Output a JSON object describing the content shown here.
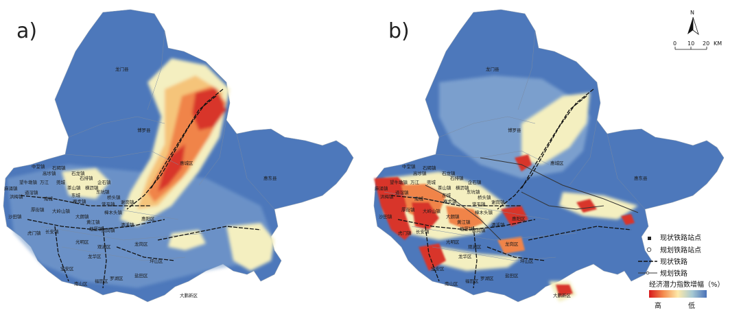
{
  "panels": [
    {
      "label": "a)"
    },
    {
      "label": "b)"
    }
  ],
  "region_labels": [
    "龙门县",
    "博罗县",
    "惠城区",
    "惠东县",
    "中堂镇",
    "石碣镇",
    "望牛墩镇",
    "高埗镇",
    "石龙镇",
    "麻涌镇",
    "万江",
    "莞城",
    "石排镇",
    "企石镇",
    "洪梅镇",
    "茶山镇",
    "横沥镇",
    "道滘镇",
    "南城",
    "东城",
    "东坑镇",
    "桥头镇",
    "厚街镇",
    "寮步镇",
    "常平镇",
    "谢岗镇",
    "沙田镇",
    "大岭山镇",
    "大朗镇",
    "黄江镇",
    "樟木头镇",
    "清溪镇",
    "凤岗镇",
    "塘厦镇",
    "长安镇",
    "虎门镇",
    "光明区",
    "观澜区",
    "龙岗区",
    "龙华区",
    "坪山区",
    "宝安区",
    "南山区",
    "福田区",
    "罗湖区",
    "盐田区",
    "大鹏新区",
    "惠阳区"
  ],
  "compass": {
    "north": "N"
  },
  "scale": {
    "ticks": [
      "0",
      "10",
      "20"
    ],
    "unit": "KM"
  },
  "legend": {
    "items": [
      "现状铁路站点",
      "规划铁路站点",
      "现状铁路",
      "规划铁路"
    ],
    "ramp_title": "经济潜力指数增幅（%）",
    "high": "高",
    "low": "低",
    "ramp_colors": [
      "#d7191c",
      "#f48d4f",
      "#fde9a9",
      "#a6c9d3",
      "#4a72b8"
    ]
  },
  "colors": {
    "base": "#4a72b8",
    "mid": "#8fb0d6",
    "light": "#f4f0c4",
    "yellow": "#f2e08a",
    "orange": "#f29a55",
    "red": "#d8352a",
    "water": "#ffffff"
  }
}
